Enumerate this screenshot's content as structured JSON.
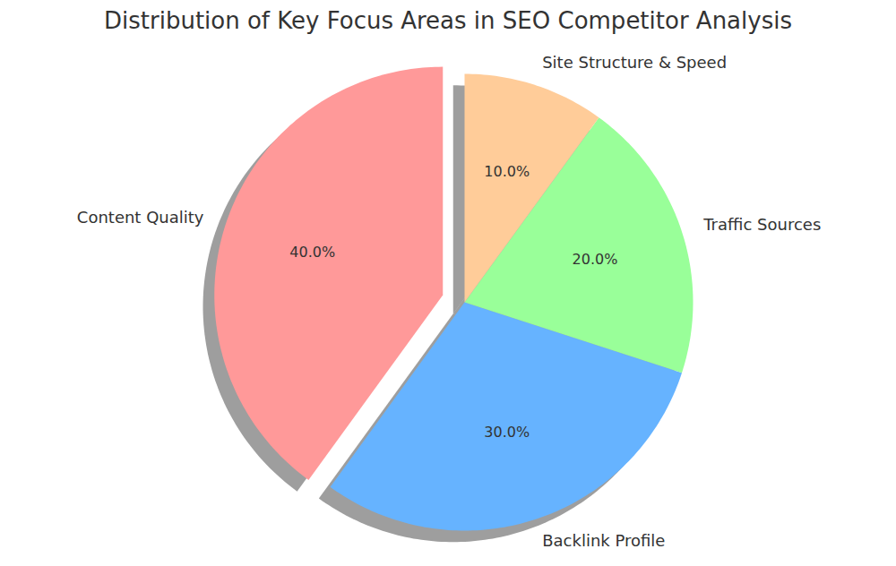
{
  "chart_data": {
    "type": "pie",
    "title": "Distribution of Key Focus Areas in SEO Competitor Analysis",
    "categories": [
      "Content Quality",
      "Backlink Profile",
      "Traffic Sources",
      "Site Structure & Speed"
    ],
    "values": [
      40,
      30,
      20,
      10
    ],
    "value_labels": [
      "40.0%",
      "30.0%",
      "20.0%",
      "10.0%"
    ],
    "colors": [
      "#ff9999",
      "#66b3ff",
      "#99ff99",
      "#ffcc99"
    ],
    "data_labels": true
  }
}
